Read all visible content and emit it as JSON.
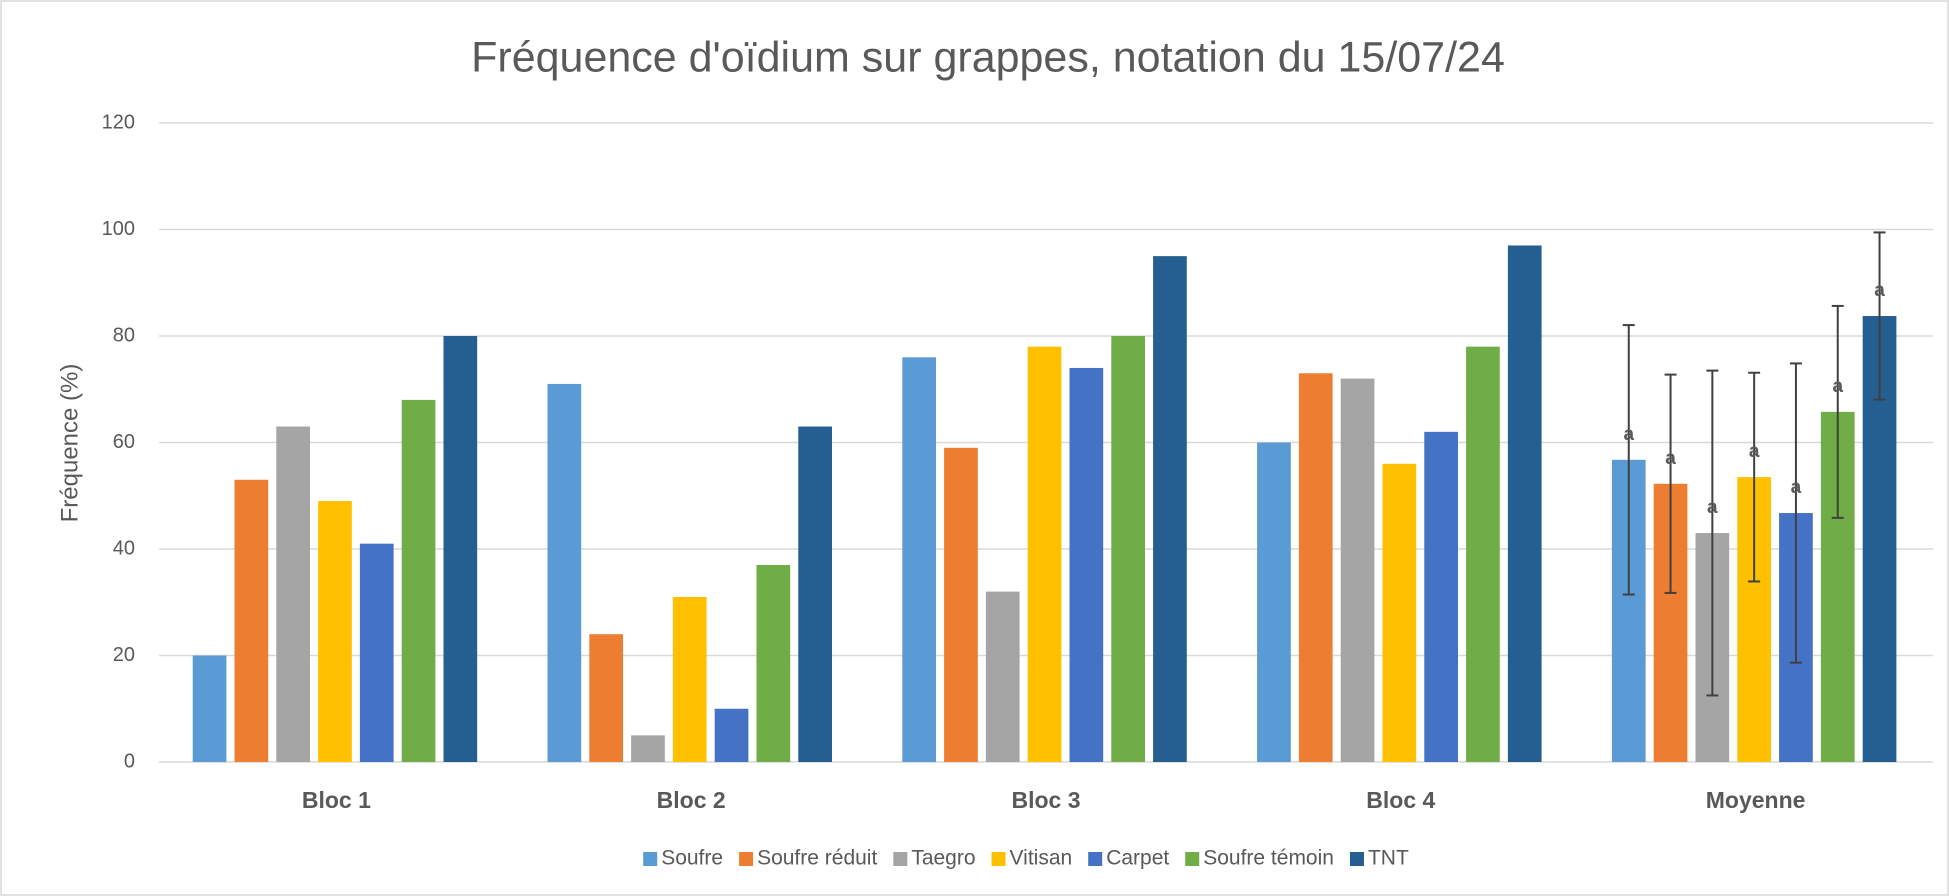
{
  "chart_data": {
    "type": "bar",
    "title": "Fréquence d'oïdium sur grappes, notation du 15/07/24",
    "y_label": "Fréquence (%)",
    "categories": [
      "Bloc 1",
      "Bloc 2",
      "Bloc 3",
      "Bloc 4",
      "Moyenne"
    ],
    "ylim": [
      0,
      120
    ],
    "yticks": [
      0,
      20,
      40,
      60,
      80,
      100,
      120
    ],
    "grid": true,
    "legend": "bottom",
    "series": [
      {
        "name": "Soufre",
        "color": "#5b9bd5",
        "values": [
          20,
          71,
          76,
          60,
          56.75
        ],
        "errors": [
          null,
          null,
          null,
          null,
          25.3
        ],
        "labels": [
          null,
          null,
          null,
          null,
          "a"
        ]
      },
      {
        "name": "Soufre réduit",
        "color": "#ed7d31",
        "values": [
          53,
          24,
          59,
          73,
          52.25
        ],
        "errors": [
          null,
          null,
          null,
          null,
          20.5
        ],
        "labels": [
          null,
          null,
          null,
          null,
          "a"
        ]
      },
      {
        "name": "Taegro",
        "color": "#a5a5a5",
        "values": [
          63,
          5,
          32,
          72,
          43
        ],
        "errors": [
          null,
          null,
          null,
          null,
          30.5
        ],
        "labels": [
          null,
          null,
          null,
          null,
          "a"
        ]
      },
      {
        "name": "Vitisan",
        "color": "#ffc000",
        "values": [
          49,
          31,
          78,
          56,
          53.5
        ],
        "errors": [
          null,
          null,
          null,
          null,
          19.6
        ],
        "labels": [
          null,
          null,
          null,
          null,
          "a"
        ]
      },
      {
        "name": "Carpet",
        "color": "#4472c4",
        "values": [
          41,
          10,
          74,
          62,
          46.75
        ],
        "errors": [
          null,
          null,
          null,
          null,
          28.1
        ],
        "labels": [
          null,
          null,
          null,
          null,
          "a"
        ]
      },
      {
        "name": "Soufre témoin",
        "color": "#70ad47",
        "values": [
          68,
          37,
          80,
          78,
          65.75
        ],
        "errors": [
          null,
          null,
          null,
          null,
          19.9
        ],
        "labels": [
          null,
          null,
          null,
          null,
          "a"
        ]
      },
      {
        "name": "TNT",
        "color": "#255e91",
        "values": [
          80,
          63,
          95,
          97,
          83.75
        ],
        "errors": [
          null,
          null,
          null,
          null,
          15.7
        ],
        "labels": [
          null,
          null,
          null,
          null,
          "a"
        ]
      }
    ]
  }
}
